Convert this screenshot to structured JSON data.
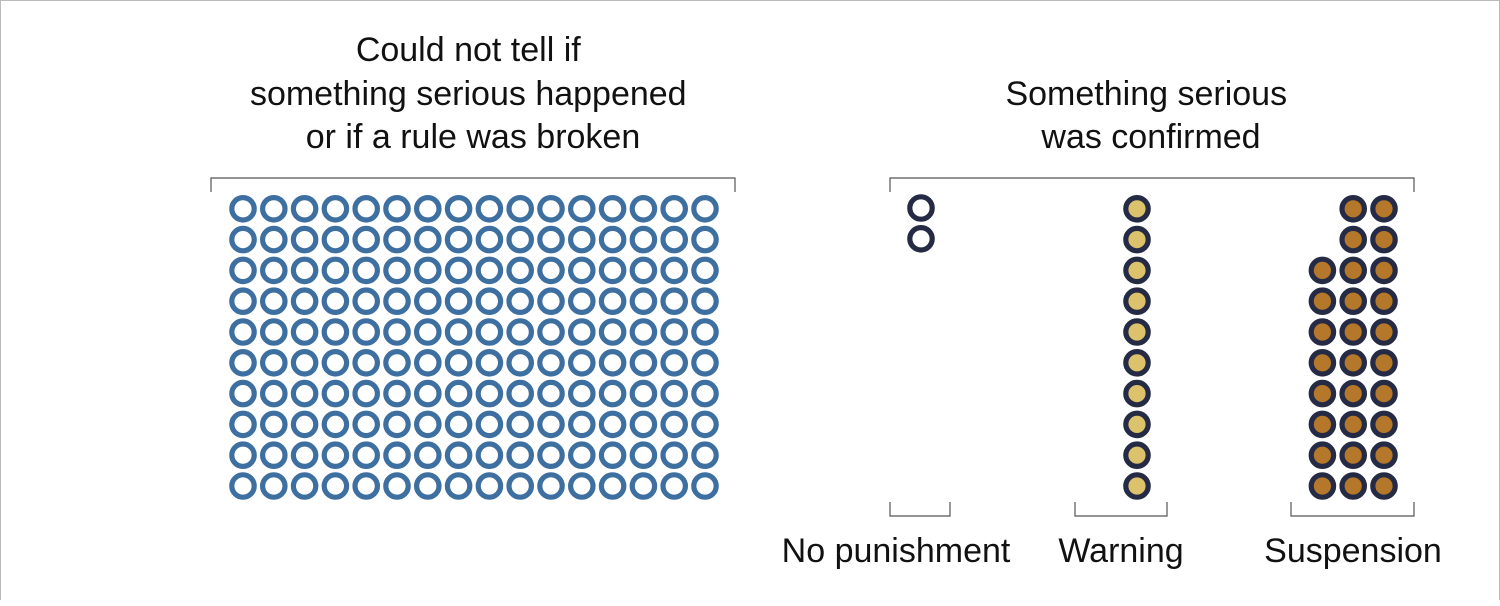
{
  "chart_data": {
    "type": "waffle",
    "groups": [
      {
        "title_lines": [
          "Could not tell if",
          "something serious happened",
          "or if a rule was broken"
        ],
        "categories": [
          {
            "label": "",
            "count": 160,
            "fill": "#ffffff",
            "stroke": "#3d6fa0"
          }
        ]
      },
      {
        "title_lines": [
          "Something serious",
          "was confirmed"
        ],
        "categories": [
          {
            "label": "No punishment",
            "count": 2,
            "fill": "#ffffff",
            "stroke": "#252b45"
          },
          {
            "label": "Warning",
            "count": 10,
            "fill": "#dcc26a",
            "stroke": "#252b45"
          },
          {
            "label": "Suspension",
            "count": 28,
            "fill": "#b5772a",
            "stroke": "#252b45"
          }
        ]
      }
    ]
  }
}
